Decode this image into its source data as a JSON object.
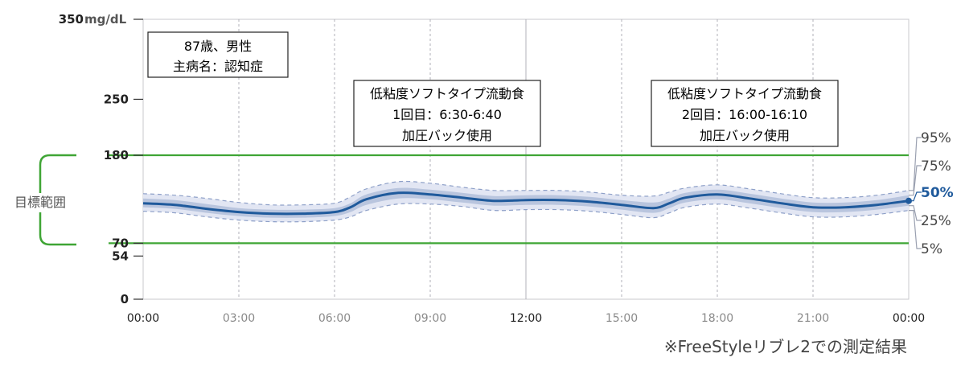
{
  "chart_data": {
    "type": "area",
    "title": "",
    "y_unit": "mg/dL",
    "ylim": [
      0,
      350
    ],
    "y_ticks": [
      {
        "value": 350,
        "label": "350"
      },
      {
        "value": 250,
        "label": "250"
      },
      {
        "value": 180,
        "label": "180"
      },
      {
        "value": 70,
        "label": "70"
      },
      {
        "value": 54,
        "label": "54"
      },
      {
        "value": 0,
        "label": "0"
      }
    ],
    "x_ticks": [
      {
        "hour": 0,
        "label": "00:00",
        "major": true
      },
      {
        "hour": 3,
        "label": "03:00",
        "major": false
      },
      {
        "hour": 6,
        "label": "06:00",
        "major": false
      },
      {
        "hour": 9,
        "label": "09:00",
        "major": false
      },
      {
        "hour": 12,
        "label": "12:00",
        "major": true
      },
      {
        "hour": 15,
        "label": "15:00",
        "major": false
      },
      {
        "hour": 18,
        "label": "18:00",
        "major": false
      },
      {
        "hour": 21,
        "label": "21:00",
        "major": false
      },
      {
        "hour": 24,
        "label": "00:00",
        "major": true
      }
    ],
    "target_range": {
      "low": 70,
      "high": 180,
      "label": "目標範囲",
      "color": "#3fa535"
    },
    "x_hours": [
      0,
      1,
      2,
      3,
      4,
      5,
      6,
      6.5,
      7,
      8,
      9,
      10,
      11,
      12,
      13,
      14,
      15,
      16,
      16.5,
      17,
      18,
      19,
      20,
      21,
      22,
      23,
      24
    ],
    "series": [
      {
        "name": "95%",
        "values": [
          132,
          130,
          126,
          121,
          118,
          118,
          120,
          128,
          138,
          147,
          145,
          140,
          136,
          136,
          136,
          134,
          130,
          129,
          134,
          139,
          143,
          138,
          132,
          127,
          127,
          130,
          136
        ]
      },
      {
        "name": "75%",
        "values": [
          126,
          124,
          119,
          114,
          112,
          112,
          114,
          120,
          131,
          139,
          137,
          133,
          129,
          130,
          130,
          128,
          124,
          121,
          126,
          133,
          137,
          132,
          126,
          121,
          121,
          124,
          130
        ]
      },
      {
        "name": "50%",
        "values": [
          120,
          118,
          113,
          109,
          107,
          107,
          109,
          115,
          125,
          133,
          131,
          127,
          123,
          124,
          124,
          122,
          118,
          114,
          120,
          127,
          131,
          126,
          120,
          115,
          115,
          118,
          123
        ]
      },
      {
        "name": "25%",
        "values": [
          115,
          113,
          108,
          104,
          102,
          102,
          104,
          109,
          118,
          126,
          125,
          121,
          117,
          118,
          118,
          116,
          112,
          108,
          114,
          121,
          125,
          120,
          114,
          109,
          109,
          112,
          117
        ]
      },
      {
        "name": "5%",
        "values": [
          110,
          108,
          103,
          99,
          97,
          97,
          99,
          103,
          111,
          119,
          119,
          116,
          111,
          112,
          112,
          110,
          106,
          102,
          108,
          115,
          119,
          114,
          108,
          103,
          103,
          106,
          111
        ]
      }
    ],
    "colors": {
      "band_outer": "#e2e6f3",
      "band_inner": "#b9c5de",
      "median": "#1f5a9c",
      "outer_dash": "#8ea0c8",
      "grid": "#b0b0b8"
    },
    "percentile_labels": [
      "95%",
      "75%",
      "50%",
      "25%",
      "5%"
    ]
  },
  "annotations": {
    "patient": [
      "87歳、男性",
      "主病名：認知症"
    ],
    "meal1": [
      "低粘度ソフトタイプ流動食",
      "1回目：6:30-6:40",
      "加圧バック使用"
    ],
    "meal2": [
      "低粘度ソフトタイプ流動食",
      "2回目：16:00-16:10",
      "加圧バック使用"
    ]
  },
  "footnote": "※FreeStyleリブレ2での測定結果"
}
